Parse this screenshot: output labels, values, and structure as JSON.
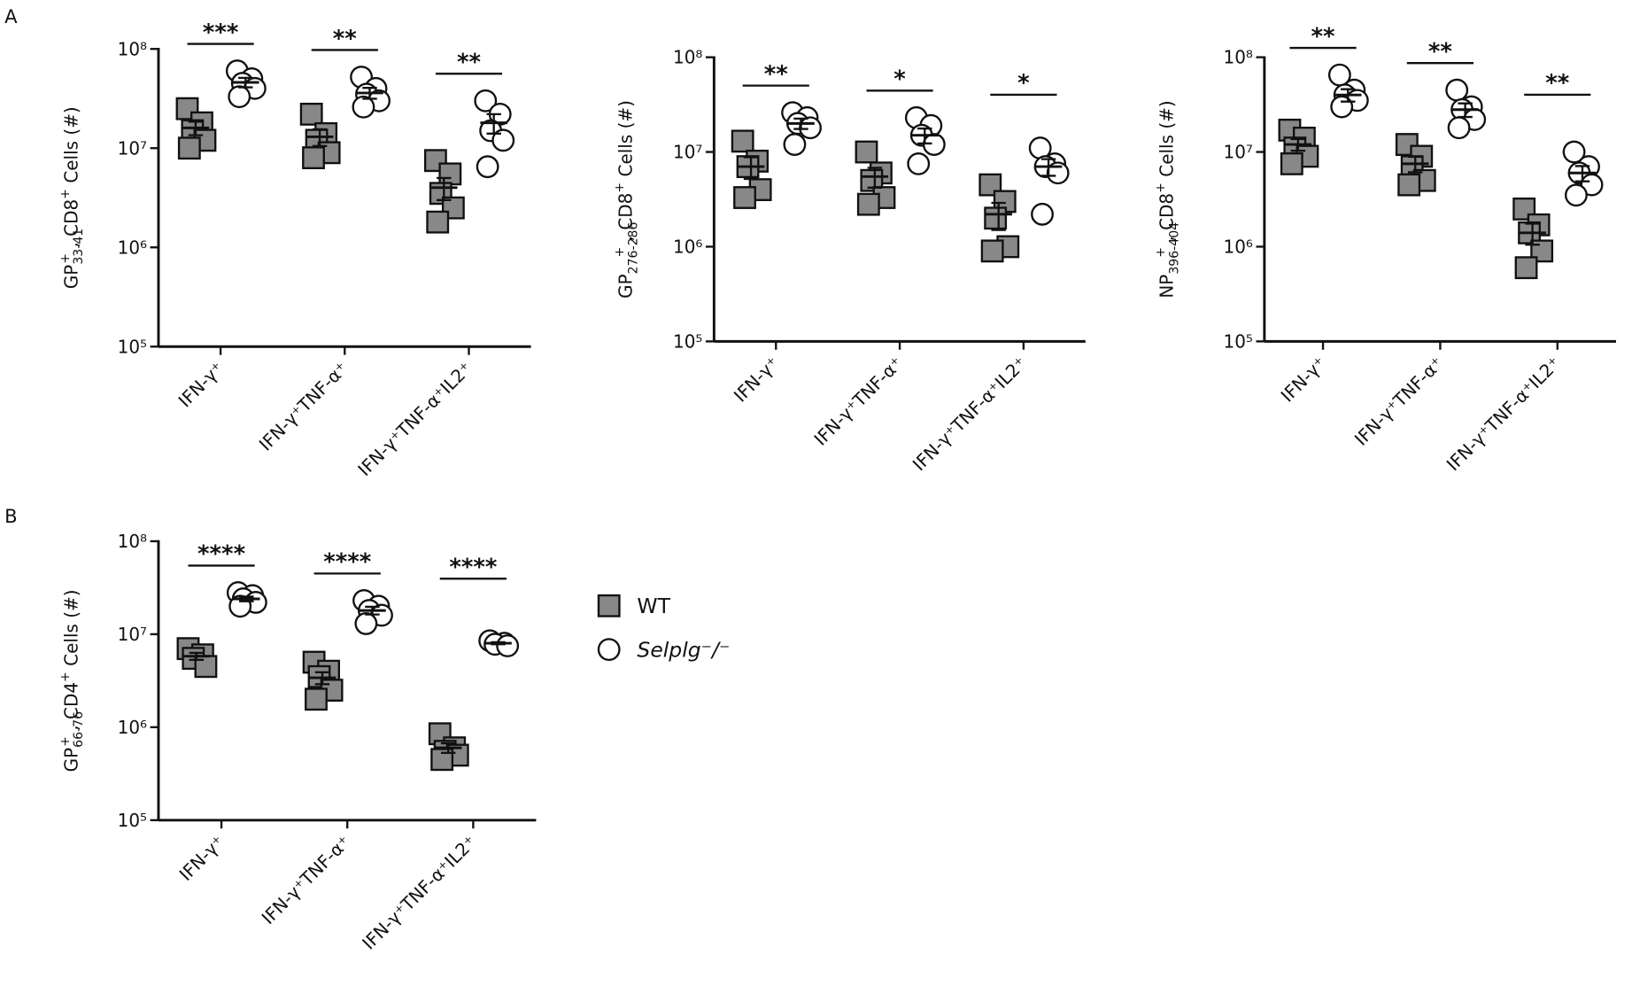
{
  "panel_labels": [
    "A",
    "B"
  ],
  "chart_data": [
    {
      "type": "scatter",
      "log": true,
      "ylim": [
        100000,
        100000000
      ],
      "yticks": [
        {
          "value": 100000,
          "label": "10⁵"
        },
        {
          "value": 1000000,
          "label": "10⁶"
        },
        {
          "value": 10000000,
          "label": "10⁷"
        },
        {
          "value": 100000000,
          "label": "10⁸"
        }
      ],
      "ylabel": [
        {
          "text": "GP"
        },
        {
          "text": "33-41",
          "pos": "sub"
        },
        {
          "text": "+",
          "pos": "sup"
        },
        {
          "text": " , CD8"
        },
        {
          "text": "+",
          "pos": "sup"
        },
        {
          "text": " Cells (#)"
        }
      ],
      "categories": [
        "IFN-γ⁺",
        "IFN-γ⁺TNF-α⁺",
        "IFN-γ⁺TNF-α⁺IL2⁺"
      ],
      "annotations": [
        "***",
        "**",
        "**"
      ],
      "series": [
        {
          "color": "#888888",
          "marker": "square",
          "values": [
            [
              25000000,
              18000000,
              15000000,
              12000000,
              10000000
            ],
            [
              22000000,
              14000000,
              12000000,
              9000000,
              8000000
            ],
            [
              7500000,
              5500000,
              3500000,
              2500000,
              1800000
            ]
          ],
          "mean": [
            16000000,
            13000000,
            4000000
          ],
          "sem": [
            2500000,
            2500000,
            1000000
          ]
        },
        {
          "color": "#ffffff",
          "marker": "circle",
          "values": [
            [
              60000000,
              50000000,
              45000000,
              40000000,
              33000000
            ],
            [
              52000000,
              40000000,
              35000000,
              30000000,
              26000000
            ],
            [
              30000000,
              22000000,
              15000000,
              12000000,
              6500000
            ]
          ],
          "mean": [
            46000000,
            36000000,
            18000000
          ],
          "sem": [
            5000000,
            4500000,
            4000000
          ]
        }
      ]
    },
    {
      "type": "scatter",
      "log": true,
      "ylim": [
        100000,
        100000000
      ],
      "yticks": [
        {
          "value": 100000,
          "label": "10⁵"
        },
        {
          "value": 1000000,
          "label": "10⁶"
        },
        {
          "value": 10000000,
          "label": "10⁷"
        },
        {
          "value": 100000000,
          "label": "10⁸"
        }
      ],
      "ylabel": [
        {
          "text": "GP"
        },
        {
          "text": "276-286",
          "pos": "sub"
        },
        {
          "text": "+",
          "pos": "sup"
        },
        {
          "text": " , CD8"
        },
        {
          "text": "+",
          "pos": "sup"
        },
        {
          "text": " Cells (#)"
        }
      ],
      "categories": [
        "IFN-γ⁺",
        "IFN-γ⁺TNF-α⁺",
        "IFN-γ⁺TNF-α⁺IL2⁺"
      ],
      "annotations": [
        "**",
        "*",
        "*"
      ],
      "series": [
        {
          "color": "#888888",
          "marker": "square",
          "values": [
            [
              13000000,
              8000000,
              7000000,
              4000000,
              3300000
            ],
            [
              10000000,
              6000000,
              5000000,
              3300000,
              2800000
            ],
            [
              4500000,
              3000000,
              2000000,
              1000000,
              900000
            ]
          ],
          "mean": [
            7000000,
            5500000,
            2200000
          ],
          "sem": [
            1800000,
            1300000,
            700000
          ]
        },
        {
          "color": "#ffffff",
          "marker": "circle",
          "values": [
            [
              26000000,
              23000000,
              20000000,
              18000000,
              12000000
            ],
            [
              23000000,
              19000000,
              15000000,
              12000000,
              7500000
            ],
            [
              11000000,
              7500000,
              7000000,
              6000000,
              2200000
            ]
          ],
          "mean": [
            20000000,
            15000000,
            7000000
          ],
          "sem": [
            2500000,
            2700000,
            1400000
          ]
        }
      ]
    },
    {
      "type": "scatter",
      "log": true,
      "ylim": [
        100000,
        100000000
      ],
      "yticks": [
        {
          "value": 100000,
          "label": "10⁵"
        },
        {
          "value": 1000000,
          "label": "10⁶"
        },
        {
          "value": 10000000,
          "label": "10⁷"
        },
        {
          "value": 100000000,
          "label": "10⁸"
        }
      ],
      "ylabel": [
        {
          "text": "NP"
        },
        {
          "text": "396-404",
          "pos": "sub"
        },
        {
          "text": "+",
          "pos": "sup"
        },
        {
          "text": " , CD8"
        },
        {
          "text": "+",
          "pos": "sup"
        },
        {
          "text": " Cells (#)"
        }
      ],
      "categories": [
        "IFN-γ⁺",
        "IFN-γ⁺TNF-α⁺",
        "IFN-γ⁺TNF-α⁺IL2⁺"
      ],
      "annotations": [
        "**",
        "**",
        "**"
      ],
      "series": [
        {
          "color": "#888888",
          "marker": "square",
          "values": [
            [
              17000000,
              14000000,
              11000000,
              9000000,
              7500000
            ],
            [
              12000000,
              9000000,
              7000000,
              5000000,
              4500000
            ],
            [
              2500000,
              1700000,
              1400000,
              900000,
              600000
            ]
          ],
          "mean": [
            12000000,
            7500000,
            1400000
          ],
          "sem": [
            1700000,
            1400000,
            350000
          ]
        },
        {
          "color": "#ffffff",
          "marker": "circle",
          "values": [
            [
              65000000,
              45000000,
              40000000,
              35000000,
              30000000
            ],
            [
              45000000,
              30000000,
              28000000,
              22000000,
              18000000
            ],
            [
              10000000,
              7000000,
              6000000,
              4500000,
              3500000
            ]
          ],
          "mean": [
            40000000,
            28000000,
            6000000
          ],
          "sem": [
            6000000,
            4600000,
            1100000
          ]
        }
      ]
    },
    {
      "type": "scatter",
      "log": true,
      "ylim": [
        100000,
        100000000
      ],
      "legend": "right",
      "yticks": [
        {
          "value": 100000,
          "label": "10⁵"
        },
        {
          "value": 1000000,
          "label": "10⁶"
        },
        {
          "value": 10000000,
          "label": "10⁷"
        },
        {
          "value": 100000000,
          "label": "10⁸"
        }
      ],
      "ylabel": [
        {
          "text": "GP"
        },
        {
          "text": "66-76",
          "pos": "sub"
        },
        {
          "text": "+",
          "pos": "sup"
        },
        {
          "text": " , CD4"
        },
        {
          "text": "+",
          "pos": "sup"
        },
        {
          "text": " Cells (#)"
        }
      ],
      "categories": [
        "IFN-γ⁺",
        "IFN-γ⁺TNF-α⁺",
        "IFN-γ⁺TNF-α⁺IL2⁺"
      ],
      "annotations": [
        "****",
        "****",
        "****"
      ],
      "series": [
        {
          "name": "WT",
          "color": "#888888",
          "marker": "square",
          "values": [
            [
              7000000,
              6000000,
              5500000,
              4500000
            ],
            [
              5000000,
              4000000,
              3500000,
              2500000,
              2000000
            ],
            [
              850000,
              600000,
              550000,
              500000,
              450000
            ]
          ],
          "mean": [
            5800000,
            3400000,
            600000
          ],
          "sem": [
            500000,
            500000,
            70000
          ]
        },
        {
          "name": "Selplg⁻/⁻",
          "italic": true,
          "color": "#ffffff",
          "marker": "circle",
          "values": [
            [
              28000000,
              26000000,
              24000000,
              22000000,
              20000000
            ],
            [
              23000000,
              20000000,
              18000000,
              16000000,
              13000000
            ],
            [
              8500000,
              8000000,
              7800000,
              7500000
            ]
          ],
          "mean": [
            24000000,
            18000000,
            8000000
          ],
          "sem": [
            1400000,
            1700000,
            200000
          ]
        }
      ]
    }
  ]
}
